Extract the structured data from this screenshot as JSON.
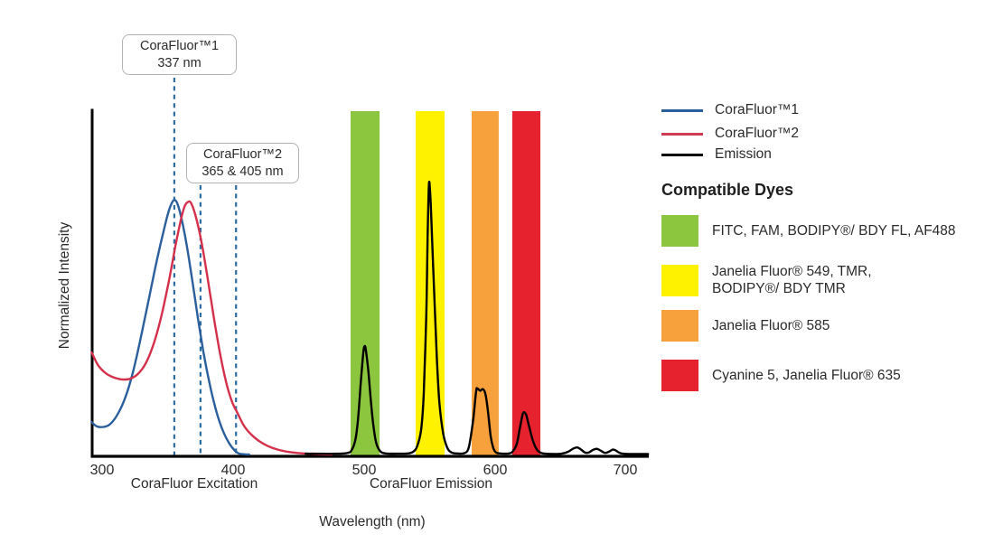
{
  "chart": {
    "y_axis_label": "Normalized Intensity",
    "x_axis_label": "Wavelength (nm)",
    "x_ticks": [
      "300",
      "400",
      "500",
      "600",
      "700"
    ],
    "region_labels": {
      "excitation": "CoraFluor Excitation",
      "emission": "CoraFluor Emission"
    },
    "callouts": [
      {
        "line1": "CoraFluor™1",
        "line2": "337 nm"
      },
      {
        "line1": "CoraFluor™2",
        "line2": "365 & 405 nm"
      }
    ]
  },
  "legend": {
    "entries": [
      {
        "label": "CoraFluor™1",
        "color": "#2B5F9C"
      },
      {
        "label": "CoraFluor™2",
        "color": "#CE3B52"
      },
      {
        "label": "Emission",
        "color": "#000000"
      }
    ]
  },
  "compatible_dyes": {
    "heading": "Compatible Dyes",
    "items": [
      {
        "label": "FITC, FAM, BODIPY®/ BDY FL, AF488",
        "color": "#8CC63F"
      },
      {
        "label": "Janelia Fluor® 549, TMR,\nBODIPY®/ BDY TMR",
        "color": "#FEF200"
      },
      {
        "label": "Janelia Fluor® 585",
        "color": "#F6A13C"
      },
      {
        "label": "Cyanine 5, Janelia Fluor® 635",
        "color": "#E6222E"
      }
    ]
  },
  "chart_data": {
    "type": "line",
    "xlabel": "Wavelength (nm)",
    "ylabel": "Normalized Intensity",
    "xlim": [
      292,
      717
    ],
    "ylim": [
      0,
      1.05
    ],
    "x_ticks": [
      300,
      400,
      500,
      600,
      700
    ],
    "grid": false,
    "legend_position": "right",
    "series": [
      {
        "name": "CoraFluor™1 excitation",
        "color": "#2B5F9C",
        "peaks_nm": [
          356
        ],
        "points": [
          [
            292,
            0.12
          ],
          [
            296,
            0.104
          ],
          [
            301,
            0.102
          ],
          [
            306,
            0.112
          ],
          [
            312,
            0.15
          ],
          [
            318,
            0.215
          ],
          [
            324,
            0.315
          ],
          [
            330,
            0.445
          ],
          [
            336,
            0.585
          ],
          [
            342,
            0.725
          ],
          [
            347,
            0.83
          ],
          [
            351,
            0.905
          ],
          [
            354,
            0.938
          ],
          [
            356,
            0.94
          ],
          [
            358,
            0.92
          ],
          [
            361,
            0.862
          ],
          [
            365,
            0.76
          ],
          [
            369,
            0.635
          ],
          [
            373,
            0.505
          ],
          [
            377,
            0.385
          ],
          [
            381,
            0.283
          ],
          [
            385,
            0.197
          ],
          [
            389,
            0.128
          ],
          [
            393,
            0.077
          ],
          [
            397,
            0.04
          ],
          [
            401,
            0.015
          ],
          [
            404,
            0.004
          ],
          [
            408,
            0.001
          ],
          [
            412,
            0.0
          ]
        ]
      },
      {
        "name": "CoraFluor™2 excitation",
        "color": "#D5304B",
        "peaks_nm": [
          365
        ],
        "points": [
          [
            292,
            0.378
          ],
          [
            297,
            0.33
          ],
          [
            303,
            0.3
          ],
          [
            309,
            0.285
          ],
          [
            315,
            0.278
          ],
          [
            321,
            0.28
          ],
          [
            327,
            0.297
          ],
          [
            333,
            0.335
          ],
          [
            339,
            0.405
          ],
          [
            345,
            0.51
          ],
          [
            351,
            0.645
          ],
          [
            356,
            0.775
          ],
          [
            360,
            0.868
          ],
          [
            363,
            0.92
          ],
          [
            366,
            0.936
          ],
          [
            368,
            0.928
          ],
          [
            371,
            0.888
          ],
          [
            375,
            0.805
          ],
          [
            379,
            0.695
          ],
          [
            383,
            0.572
          ],
          [
            387,
            0.452
          ],
          [
            391,
            0.345
          ],
          [
            395,
            0.258
          ],
          [
            399,
            0.195
          ],
          [
            403,
            0.155
          ],
          [
            408,
            0.107
          ],
          [
            413,
            0.077
          ],
          [
            419,
            0.052
          ],
          [
            426,
            0.032
          ],
          [
            434,
            0.018
          ],
          [
            443,
            0.009
          ],
          [
            453,
            0.004
          ],
          [
            464,
            0.001
          ],
          [
            475,
            0.0
          ]
        ]
      },
      {
        "name": "Emission",
        "color": "#000000",
        "peaks_nm": [
          500,
          549,
          590,
          622
        ],
        "points": [
          [
            455,
            0.003
          ],
          [
            480,
            0.003
          ],
          [
            487,
            0.006
          ],
          [
            490,
            0.015
          ],
          [
            493,
            0.055
          ],
          [
            495,
            0.13
          ],
          [
            497,
            0.26
          ],
          [
            499,
            0.375
          ],
          [
            500,
            0.401
          ],
          [
            501,
            0.385
          ],
          [
            503,
            0.3
          ],
          [
            505,
            0.185
          ],
          [
            507,
            0.095
          ],
          [
            509,
            0.04
          ],
          [
            512,
            0.012
          ],
          [
            516,
            0.004
          ],
          [
            525,
            0.003
          ],
          [
            533,
            0.004
          ],
          [
            537,
            0.01
          ],
          [
            540,
            0.03
          ],
          [
            543,
            0.09
          ],
          [
            545,
            0.22
          ],
          [
            547,
            0.52
          ],
          [
            548,
            0.8
          ],
          [
            549,
            1.0
          ],
          [
            550,
            0.965
          ],
          [
            551,
            0.85
          ],
          [
            553,
            0.6
          ],
          [
            555,
            0.36
          ],
          [
            557,
            0.19
          ],
          [
            560,
            0.075
          ],
          [
            563,
            0.025
          ],
          [
            566,
            0.008
          ],
          [
            570,
            0.004
          ],
          [
            576,
            0.005
          ],
          [
            579,
            0.02
          ],
          [
            581,
            0.07
          ],
          [
            583,
            0.14
          ],
          [
            585,
            0.235
          ],
          [
            586,
            0.244
          ],
          [
            588,
            0.236
          ],
          [
            590,
            0.242
          ],
          [
            592,
            0.225
          ],
          [
            594,
            0.16
          ],
          [
            596,
            0.07
          ],
          [
            598,
            0.025
          ],
          [
            600,
            0.008
          ],
          [
            603,
            0.004
          ],
          [
            610,
            0.004
          ],
          [
            613,
            0.012
          ],
          [
            616,
            0.04
          ],
          [
            618,
            0.09
          ],
          [
            620,
            0.14
          ],
          [
            621,
            0.156
          ],
          [
            623,
            0.148
          ],
          [
            625,
            0.11
          ],
          [
            628,
            0.055
          ],
          [
            631,
            0.02
          ],
          [
            634,
            0.007
          ],
          [
            638,
            0.003
          ],
          [
            645,
            0.002
          ],
          [
            650,
            0.003
          ],
          [
            655,
            0.01
          ],
          [
            659,
            0.022
          ],
          [
            662,
            0.026
          ],
          [
            665,
            0.018
          ],
          [
            668,
            0.007
          ],
          [
            671,
            0.008
          ],
          [
            674,
            0.017
          ],
          [
            677,
            0.021
          ],
          [
            680,
            0.014
          ],
          [
            683,
            0.006
          ],
          [
            686,
            0.01
          ],
          [
            689,
            0.018
          ],
          [
            691,
            0.016
          ],
          [
            694,
            0.007
          ],
          [
            697,
            0.003
          ],
          [
            702,
            0.002
          ],
          [
            716,
            0.002
          ]
        ]
      }
    ],
    "bands": [
      {
        "name": "FITC, FAM, BODIPY®/ BDY FL, AF488",
        "from": 489.3,
        "to": 511.4,
        "color": "#8CC63F"
      },
      {
        "name": "Janelia Fluor® 549, TMR, BODIPY®/ BDY TMR",
        "from": 538.9,
        "to": 560.9,
        "color": "#FEF200"
      },
      {
        "name": "Janelia Fluor® 585",
        "from": 581.6,
        "to": 602.2,
        "color": "#F6A13C"
      },
      {
        "name": "Cyanine 5, Janelia Fluor® 635",
        "from": 612.5,
        "to": 633.9,
        "color": "#E6222E"
      }
    ],
    "annotation_lines": [
      {
        "at_nm": 355,
        "label": "CoraFluor™1 337 nm"
      },
      {
        "at_nm": 375,
        "label": "CoraFluor™2 365 nm"
      },
      {
        "at_nm": 402,
        "label": "CoraFluor™2 405 nm"
      }
    ],
    "annotation_line_color": "#2E6DA4"
  }
}
